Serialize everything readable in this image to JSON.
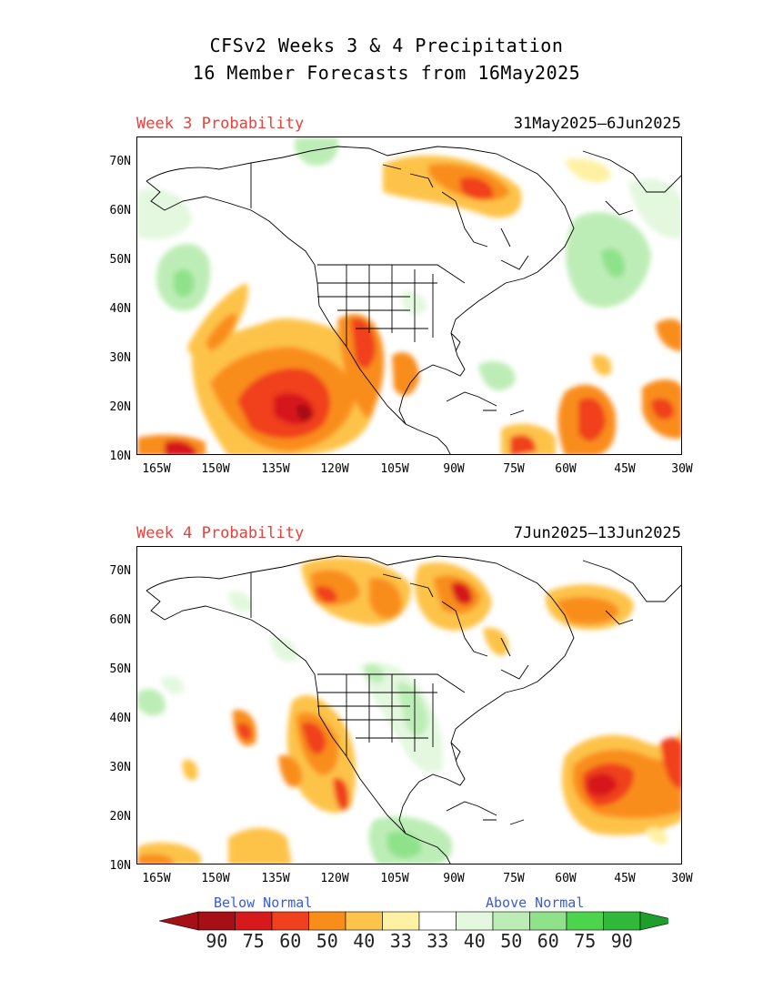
{
  "header": {
    "title_line1": "CFSv2 Weeks 3 & 4 Precipitation",
    "title_line2": "16 Member Forecasts from 16May2025"
  },
  "panels": [
    {
      "label": "Week 3 Probability",
      "dates": "31May2025—6Jun2025",
      "label_color": "#e8423c"
    },
    {
      "label": "Week 4 Probability",
      "dates": "7Jun2025—13Jun2025",
      "label_color": "#e8423c"
    }
  ],
  "axes": {
    "lat_labels": [
      "70N",
      "60N",
      "50N",
      "40N",
      "30N",
      "20N",
      "10N"
    ],
    "lon_labels": [
      "165W",
      "150W",
      "135W",
      "120W",
      "105W",
      "90W",
      "75W",
      "60W",
      "45W",
      "30W"
    ]
  },
  "colorbar": {
    "below_label": "Below Normal",
    "above_label": "Above Normal",
    "numbers": [
      "90",
      "75",
      "60",
      "50",
      "40",
      "33",
      "33",
      "40",
      "50",
      "60",
      "75",
      "90"
    ],
    "colors": [
      "#a50f15",
      "#d7191c",
      "#f0411e",
      "#f98d1a",
      "#fdc34a",
      "#fff1a3",
      "#ffffff",
      "#e3f8df",
      "#bdedb6",
      "#8fe28a",
      "#4cd44c",
      "#2fb83a"
    ],
    "low_arrow_color": "#a50f15",
    "high_arrow_color": "#1f9e2c"
  }
}
